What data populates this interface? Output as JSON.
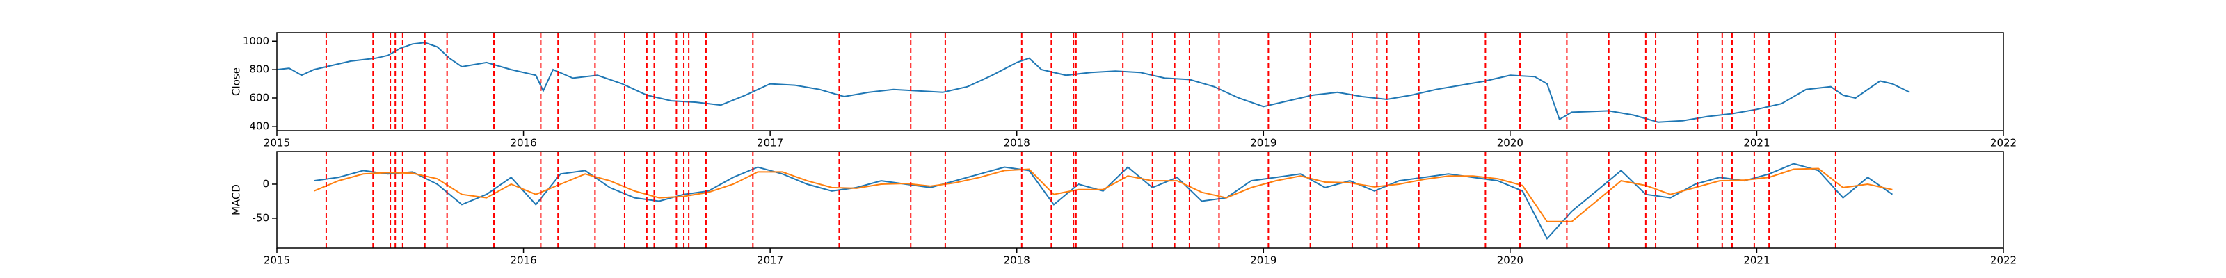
{
  "chart_data": [
    {
      "type": "line",
      "ylabel": "Close",
      "x": [
        2015.0,
        2015.05,
        2015.1,
        2015.15,
        2015.2,
        2015.3,
        2015.4,
        2015.45,
        2015.5,
        2015.55,
        2015.6,
        2015.65,
        2015.7,
        2015.75,
        2015.85,
        2015.95,
        2016.05,
        2016.08,
        2016.12,
        2016.2,
        2016.3,
        2016.4,
        2016.5,
        2016.6,
        2016.7,
        2016.8,
        2016.9,
        2017.0,
        2017.1,
        2017.2,
        2017.3,
        2017.4,
        2017.5,
        2017.6,
        2017.7,
        2017.8,
        2017.9,
        2018.0,
        2018.05,
        2018.1,
        2018.2,
        2018.3,
        2018.4,
        2018.5,
        2018.6,
        2018.7,
        2018.8,
        2018.9,
        2019.0,
        2019.1,
        2019.2,
        2019.3,
        2019.4,
        2019.5,
        2019.6,
        2019.7,
        2019.8,
        2019.9,
        2020.0,
        2020.1,
        2020.15,
        2020.2,
        2020.25,
        2020.4,
        2020.5,
        2020.6,
        2020.7,
        2020.8,
        2020.9,
        2021.0,
        2021.1,
        2021.2,
        2021.3,
        2021.35,
        2021.4,
        2021.5,
        2021.55,
        2021.62
      ],
      "series": [
        {
          "color": "#1f77b4",
          "values": [
            800,
            810,
            760,
            800,
            820,
            860,
            880,
            900,
            950,
            980,
            990,
            960,
            880,
            820,
            850,
            800,
            760,
            650,
            800,
            740,
            760,
            700,
            620,
            580,
            570,
            550,
            620,
            700,
            690,
            660,
            610,
            640,
            660,
            650,
            640,
            680,
            760,
            850,
            880,
            800,
            760,
            780,
            790,
            780,
            740,
            730,
            680,
            600,
            540,
            580,
            620,
            640,
            610,
            590,
            620,
            660,
            690,
            720,
            760,
            750,
            700,
            450,
            500,
            510,
            480,
            430,
            440,
            470,
            490,
            520,
            560,
            660,
            680,
            620,
            600,
            720,
            700,
            640
          ]
        }
      ],
      "xlim": [
        2015,
        2022
      ],
      "ylim": [
        370,
        1060
      ],
      "xticks": [
        2015,
        2016,
        2017,
        2018,
        2019,
        2020,
        2021,
        2022
      ],
      "yticks": [
        400,
        600,
        800,
        1000
      ],
      "vlines": [
        2015.2,
        2015.39,
        2015.46,
        2015.48,
        2015.51,
        2015.6,
        2015.69,
        2015.88,
        2016.07,
        2016.14,
        2016.29,
        2016.41,
        2016.5,
        2016.53,
        2016.62,
        2016.65,
        2016.67,
        2016.74,
        2016.93,
        2017.28,
        2017.57,
        2017.71,
        2018.02,
        2018.14,
        2018.23,
        2018.24,
        2018.43,
        2018.55,
        2018.64,
        2018.7,
        2018.82,
        2019.02,
        2019.19,
        2019.36,
        2019.46,
        2019.5,
        2019.63,
        2019.9,
        2020.04,
        2020.23,
        2020.4,
        2020.55,
        2020.59,
        2020.76,
        2020.86,
        2020.9,
        2020.99,
        2021.05,
        2021.32
      ],
      "vline_color": "#ff0000"
    },
    {
      "type": "line",
      "ylabel": "MACD",
      "x": [
        2015.15,
        2015.25,
        2015.35,
        2015.45,
        2015.55,
        2015.65,
        2015.75,
        2015.85,
        2015.95,
        2016.05,
        2016.15,
        2016.25,
        2016.35,
        2016.45,
        2016.55,
        2016.65,
        2016.75,
        2016.85,
        2016.95,
        2017.05,
        2017.15,
        2017.25,
        2017.35,
        2017.45,
        2017.55,
        2017.65,
        2017.75,
        2017.85,
        2017.95,
        2018.05,
        2018.15,
        2018.25,
        2018.35,
        2018.45,
        2018.55,
        2018.65,
        2018.75,
        2018.85,
        2018.95,
        2019.05,
        2019.15,
        2019.25,
        2019.35,
        2019.45,
        2019.55,
        2019.65,
        2019.75,
        2019.85,
        2019.95,
        2020.05,
        2020.15,
        2020.25,
        2020.35,
        2020.45,
        2020.55,
        2020.65,
        2020.75,
        2020.85,
        2020.95,
        2021.05,
        2021.15,
        2021.25,
        2021.35,
        2021.45,
        2021.55
      ],
      "series": [
        {
          "color": "#1f77b4",
          "values": [
            5,
            10,
            20,
            15,
            18,
            0,
            -30,
            -15,
            10,
            -30,
            15,
            20,
            -5,
            -20,
            -25,
            -15,
            -10,
            10,
            25,
            15,
            0,
            -10,
            -5,
            5,
            0,
            -5,
            5,
            15,
            25,
            20,
            -30,
            0,
            -10,
            25,
            -5,
            10,
            -25,
            -20,
            5,
            10,
            15,
            -5,
            5,
            -10,
            5,
            10,
            15,
            10,
            5,
            -10,
            -80,
            -40,
            -10,
            20,
            -15,
            -20,
            0,
            10,
            5,
            15,
            30,
            20,
            -20,
            10,
            -15
          ]
        },
        {
          "color": "#ff7f0e",
          "values": [
            -10,
            5,
            15,
            17,
            16,
            8,
            -15,
            -20,
            0,
            -15,
            0,
            15,
            5,
            -10,
            -20,
            -18,
            -12,
            0,
            18,
            18,
            5,
            -5,
            -6,
            0,
            1,
            -3,
            2,
            10,
            20,
            22,
            -15,
            -8,
            -8,
            12,
            5,
            5,
            -12,
            -20,
            -5,
            5,
            12,
            3,
            2,
            -4,
            0,
            7,
            12,
            12,
            8,
            -2,
            -55,
            -55,
            -25,
            5,
            -2,
            -15,
            -5,
            5,
            6,
            10,
            22,
            23,
            -5,
            0,
            -8
          ]
        }
      ],
      "xlim": [
        2015,
        2022
      ],
      "ylim": [
        -94,
        48
      ],
      "xticks": [
        2015,
        2016,
        2017,
        2018,
        2019,
        2020,
        2021,
        2022
      ],
      "yticks": [
        -50,
        0
      ],
      "vlines": [
        2015.2,
        2015.39,
        2015.46,
        2015.48,
        2015.51,
        2015.6,
        2015.69,
        2015.88,
        2016.07,
        2016.14,
        2016.29,
        2016.41,
        2016.5,
        2016.53,
        2016.62,
        2016.65,
        2016.67,
        2016.74,
        2016.93,
        2017.28,
        2017.57,
        2017.71,
        2018.02,
        2018.14,
        2018.23,
        2018.24,
        2018.43,
        2018.55,
        2018.64,
        2018.7,
        2018.82,
        2019.02,
        2019.19,
        2019.36,
        2019.46,
        2019.5,
        2019.63,
        2019.9,
        2020.04,
        2020.23,
        2020.4,
        2020.55,
        2020.59,
        2020.76,
        2020.86,
        2020.9,
        2020.99,
        2021.05,
        2021.32
      ],
      "vline_color": "#ff0000"
    }
  ]
}
